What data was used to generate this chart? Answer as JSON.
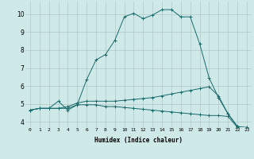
{
  "title": "",
  "xlabel": "Humidex (Indice chaleur)",
  "background_color": "#cfe8e8",
  "grid_color": "#b0c8c8",
  "line_color": "#1a6b6b",
  "xlim": [
    -0.5,
    23.5
  ],
  "ylim": [
    3.7,
    10.7
  ],
  "xticks": [
    0,
    1,
    2,
    3,
    4,
    5,
    6,
    7,
    8,
    9,
    10,
    11,
    12,
    13,
    14,
    15,
    16,
    17,
    18,
    19,
    20,
    21,
    22,
    23
  ],
  "yticks": [
    4,
    5,
    6,
    7,
    8,
    9,
    10
  ],
  "line1_x": [
    0,
    1,
    2,
    3,
    4,
    5,
    6,
    7,
    8,
    9,
    10,
    11,
    12,
    13,
    14,
    15,
    16,
    17,
    18,
    19,
    20,
    21,
    22,
    23
  ],
  "line1_y": [
    4.65,
    4.75,
    4.75,
    4.75,
    4.75,
    4.95,
    4.95,
    4.95,
    4.85,
    4.85,
    4.8,
    4.75,
    4.7,
    4.65,
    4.6,
    4.55,
    4.5,
    4.45,
    4.4,
    4.35,
    4.35,
    4.3,
    3.7,
    3.7
  ],
  "line2_x": [
    0,
    1,
    2,
    3,
    4,
    5,
    6,
    7,
    8,
    9,
    10,
    11,
    12,
    13,
    14,
    15,
    16,
    17,
    18,
    19,
    20,
    21,
    22,
    23
  ],
  "line2_y": [
    4.65,
    4.75,
    4.75,
    4.75,
    4.85,
    5.05,
    5.15,
    5.15,
    5.15,
    5.15,
    5.2,
    5.25,
    5.3,
    5.35,
    5.45,
    5.55,
    5.65,
    5.75,
    5.85,
    5.95,
    5.45,
    4.45,
    3.75,
    3.65
  ],
  "line3_x": [
    0,
    1,
    2,
    3,
    4,
    5,
    6,
    7,
    8,
    9,
    10,
    11,
    12,
    13,
    14,
    15,
    16,
    17,
    18,
    19,
    20,
    21,
    22,
    23
  ],
  "line3_y": [
    4.65,
    4.75,
    4.75,
    5.15,
    4.65,
    4.95,
    6.35,
    7.45,
    7.75,
    8.55,
    9.85,
    10.05,
    9.75,
    9.95,
    10.25,
    10.25,
    9.85,
    9.85,
    8.35,
    6.45,
    5.35,
    4.45,
    3.75,
    3.65
  ]
}
